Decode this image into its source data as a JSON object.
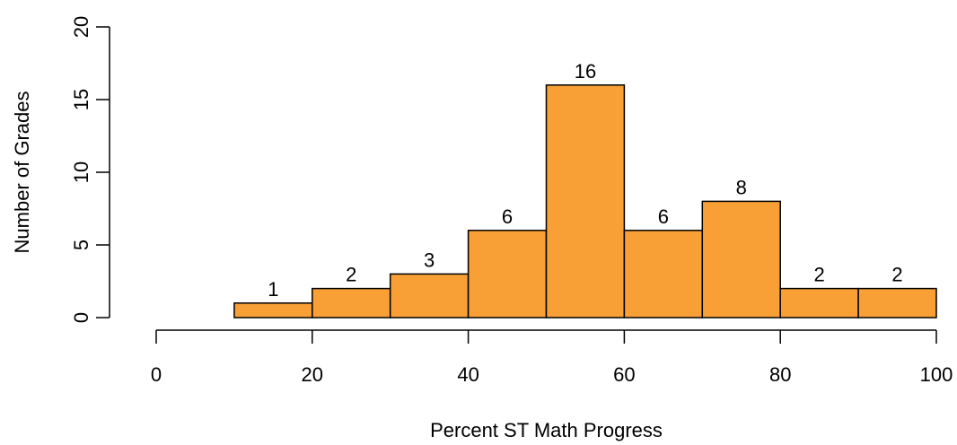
{
  "chart_data": {
    "type": "histogram",
    "title": "",
    "xlabel": "Percent ST Math Progress",
    "ylabel": "Number of Grades",
    "bins": [
      {
        "start": 10,
        "end": 20,
        "value": 1
      },
      {
        "start": 20,
        "end": 30,
        "value": 2
      },
      {
        "start": 30,
        "end": 40,
        "value": 3
      },
      {
        "start": 40,
        "end": 50,
        "value": 6
      },
      {
        "start": 50,
        "end": 60,
        "value": 16
      },
      {
        "start": 60,
        "end": 70,
        "value": 6
      },
      {
        "start": 70,
        "end": 80,
        "value": 8
      },
      {
        "start": 80,
        "end": 90,
        "value": 2
      },
      {
        "start": 90,
        "end": 100,
        "value": 2
      }
    ],
    "xlim": [
      0,
      100
    ],
    "ylim": [
      0,
      20
    ],
    "xticks": [
      0,
      20,
      40,
      60,
      80,
      100
    ],
    "yticks": [
      0,
      5,
      10,
      15,
      20
    ],
    "bar_color": "#F8A036",
    "bar_edge_color": "#000000",
    "grid": false,
    "legend": "none"
  }
}
